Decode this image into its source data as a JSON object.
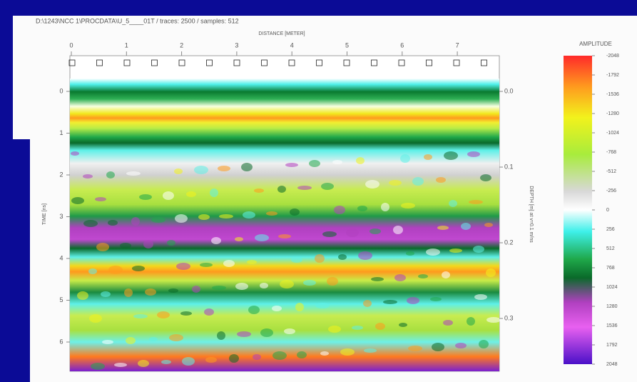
{
  "header": {
    "title": "D:\\1243\\NCC 1\\PROCDATA\\U_5____01T / traces: 2500 / samples: 512"
  },
  "top_axis": {
    "label": "DISTANCE [METER]",
    "ticks": [
      0,
      1,
      2,
      3,
      4,
      5,
      6,
      7
    ]
  },
  "left_axis": {
    "label": "TIME [ns]",
    "ticks": [
      0,
      1,
      2,
      3,
      4,
      5,
      6
    ]
  },
  "right_axis": {
    "label": "DEPTH [m] at v=0.1 m/ns",
    "ticks": [
      {
        "value": 0,
        "label": "0.0"
      },
      0.1,
      0.2,
      0.3
    ]
  },
  "colorbar": {
    "title": "AMPLITUDE",
    "ticks": [
      -2048,
      -1792,
      -1536,
      -1280,
      -1024,
      -768,
      -512,
      -256,
      0,
      256,
      512,
      768,
      1024,
      1280,
      1536,
      1792,
      2048
    ]
  }
}
